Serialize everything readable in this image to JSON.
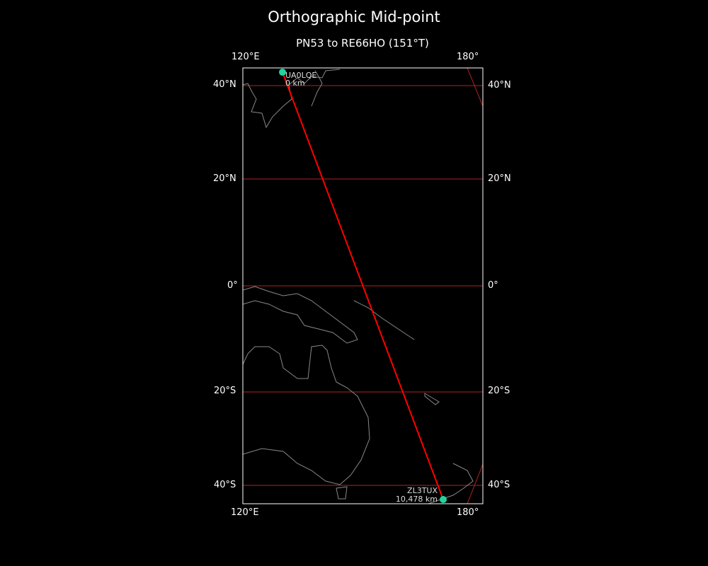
{
  "title": "Orthographic Mid-point",
  "subtitle": "PN53 to RE66HO (151°T)",
  "colors": {
    "background": "#000000",
    "path": "#ff0000",
    "gridlines": "#b22222",
    "coastline": "#888888",
    "station": "#1ed4a0",
    "frame": "#ffffff"
  },
  "axes": {
    "top_lon_labels": [
      "120°E",
      "180°"
    ],
    "bottom_lon_labels": [
      "120°E",
      "180°"
    ],
    "lat_labels": [
      "40°N",
      "20°N",
      "0°",
      "20°S",
      "40°S"
    ]
  },
  "start": {
    "call": "UA0LQE",
    "distance": "0 km"
  },
  "end": {
    "call": "ZL3TUX",
    "distance": "10,478 km"
  }
}
